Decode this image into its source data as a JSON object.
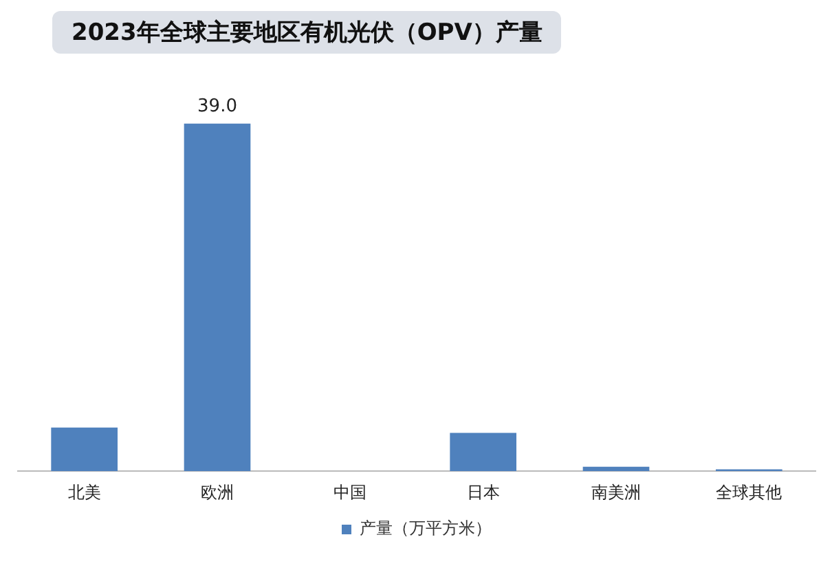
{
  "chart_data": {
    "type": "bar",
    "title": "2023年全球主要地区有机光伏（OPV）产量",
    "categories": [
      "北美",
      "欧洲",
      "中国",
      "日本",
      "南美洲",
      "全球其他"
    ],
    "series": [
      {
        "name": "产量（万平方米）",
        "color": "#4f81bd",
        "values": [
          4.9,
          39.0,
          0,
          4.3,
          0.5,
          0.2
        ],
        "value_labels": [
          null,
          "39.0",
          null,
          null,
          null,
          null
        ]
      }
    ],
    "legend": "bottom",
    "grid": false
  }
}
